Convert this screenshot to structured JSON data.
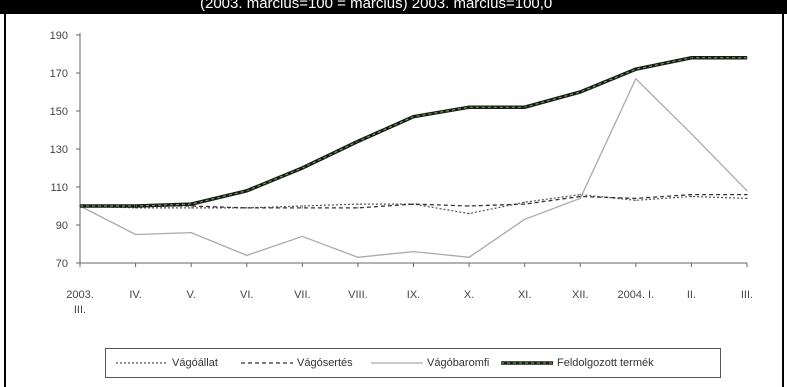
{
  "header": {
    "text": "(2003. március=100 = március) 2003. március=100,0"
  },
  "chart_data": {
    "type": "line",
    "x_categories": [
      "2003. III.",
      "IV.",
      "V.",
      "VI.",
      "VII.",
      "VIII.",
      "IX.",
      "X.",
      "XI.",
      "XII.",
      "2004. I.",
      "II.",
      "III."
    ],
    "x_tick_lines": [
      [
        "2003.",
        "III."
      ],
      [
        "IV."
      ],
      [
        "V."
      ],
      [
        "VI."
      ],
      [
        "VII."
      ],
      [
        "VIII."
      ],
      [
        "IX."
      ],
      [
        "X."
      ],
      [
        "XI."
      ],
      [
        "XII."
      ],
      [
        "2004. I."
      ],
      [
        "II."
      ],
      [
        "III."
      ]
    ],
    "ylim": [
      70,
      190
    ],
    "yticks": [
      70,
      90,
      110,
      130,
      150,
      170,
      190
    ],
    "grid": false,
    "legend_position": "bottom",
    "series": [
      {
        "name": "Vágóállat",
        "style": "dotted",
        "color": "#555555",
        "values": [
          100,
          99,
          99,
          99,
          100,
          101,
          101,
          96,
          102,
          106,
          103,
          105,
          104
        ]
      },
      {
        "name": "Vágósertés",
        "style": "dashed",
        "color": "#333333",
        "values": [
          100,
          100,
          100,
          99,
          99,
          99,
          101,
          100,
          101,
          105,
          104,
          106,
          106
        ]
      },
      {
        "name": "Vágóbaromfi",
        "style": "solid-light",
        "color": "#aaaaaa",
        "values": [
          100,
          85,
          86,
          74,
          84,
          73,
          76,
          73,
          93,
          104,
          167,
          138,
          108
        ]
      },
      {
        "name": "Feldolgozott termék",
        "style": "thick-dark",
        "color": "#1a1a1a",
        "values": [
          100,
          100,
          101,
          108,
          120,
          134,
          147,
          152,
          152,
          160,
          172,
          178,
          178
        ]
      }
    ]
  }
}
